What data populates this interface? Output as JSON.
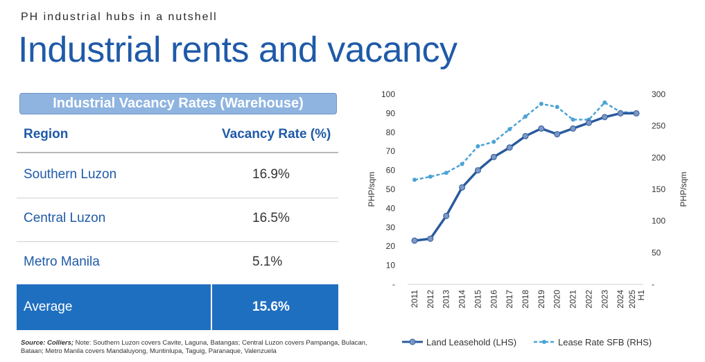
{
  "header": {
    "eyebrow": "PH industrial hubs in a nutshell",
    "title": "Industrial rents and vacancy"
  },
  "table": {
    "title": "Industrial Vacancy Rates (Warehouse)",
    "col_region": "Region",
    "col_vacancy": "Vacancy Rate (%)",
    "rows": [
      {
        "region": "Southern Luzon",
        "value": "16.9%"
      },
      {
        "region": "Central Luzon",
        "value": "16.5%"
      },
      {
        "region": "Metro Manila",
        "value": "5.1%"
      }
    ],
    "average": {
      "label": "Average",
      "value": "15.6%"
    }
  },
  "source": {
    "label": "Source: Colliers;",
    "text": " Note: Southern Luzon covers Cavite, Laguna, Batangas; Central Luzon covers Pampanga, Bulacan, Bataan; Metro Manila covers Mandaluyong, Muntinlupa, Taguig, Paranaque, Valenzuela"
  },
  "colors": {
    "title": "#1f5aa8",
    "land": "#2a5a9e",
    "lease": "#4aa3d6",
    "average_bg": "#1f6fc0",
    "header_bar": "#8fb4e0"
  },
  "chart_data": {
    "type": "line",
    "categories": [
      "2011",
      "2012",
      "2013",
      "2014",
      "2015",
      "2016",
      "2017",
      "2018",
      "2019",
      "2020",
      "2021",
      "2022",
      "2023",
      "2024",
      "H1 2025"
    ],
    "series": [
      {
        "name": "Land Leasehold (LHS)",
        "axis": "left",
        "values": [
          23,
          24,
          36,
          51,
          60,
          67,
          72,
          78,
          82,
          79,
          82,
          85,
          88,
          90,
          90
        ]
      },
      {
        "name": "Lease Rate SFB (RHS)",
        "axis": "right",
        "values": [
          165,
          170,
          176,
          190,
          218,
          225,
          245,
          265,
          285,
          280,
          260,
          260,
          287,
          272,
          271
        ]
      }
    ],
    "ylabel_left": "PHP/sqm",
    "ylabel_right": "PHP/sqm",
    "ylim_left": [
      0,
      100
    ],
    "ylim_right": [
      0,
      300
    ],
    "yticks_left": [
      "-",
      "10",
      "20",
      "30",
      "40",
      "50",
      "60",
      "70",
      "80",
      "90",
      "100"
    ],
    "yticks_right": [
      "-",
      "50",
      "100",
      "150",
      "200",
      "250",
      "300"
    ],
    "legend_position": "bottom",
    "grid": false
  }
}
